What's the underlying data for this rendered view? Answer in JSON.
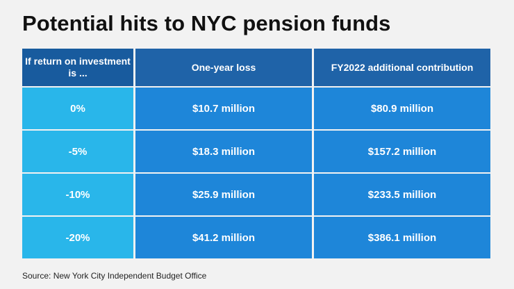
{
  "title": "Potential hits to NYC pension funds",
  "source": "Source: New York City Independent Budget Office",
  "chart_data": {
    "type": "table",
    "title": "Potential hits to NYC pension funds",
    "columns": [
      "If return on investment is ...",
      "One-year loss",
      "FY2022 additional contribution"
    ],
    "rows": [
      [
        "0%",
        "$10.7 million",
        "$80.9 million"
      ],
      [
        "-5%",
        "$18.3 million",
        "$157.2 million"
      ],
      [
        "-10%",
        "$25.9 million",
        "$233.5 million"
      ],
      [
        "-20%",
        "$41.2 million",
        "$386.1 million"
      ]
    ]
  },
  "colors": {
    "header": "#1f63a8",
    "rate_column": "#29b6ea",
    "value_cells": "#1e86d9",
    "background": "#f2f2f2"
  }
}
